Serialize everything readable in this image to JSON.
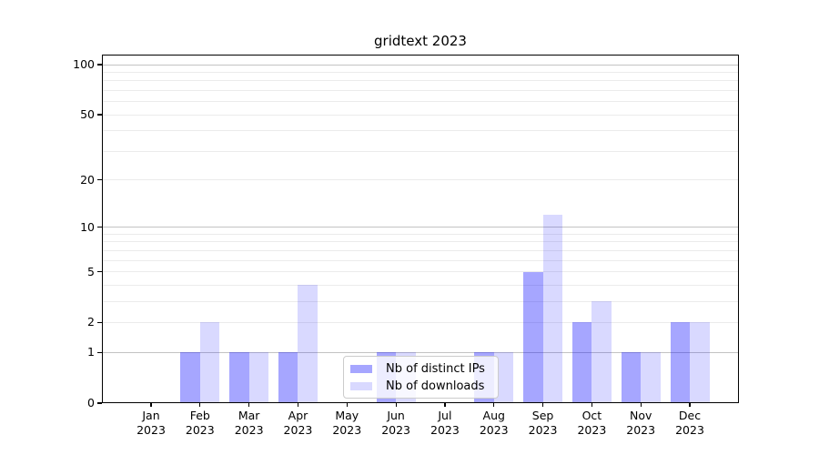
{
  "title": "gridtext 2023",
  "legend": {
    "items": [
      {
        "label": "Nb of distinct IPs",
        "color": "rgba(0,0,255,0.35)"
      },
      {
        "label": "Nb of downloads",
        "color": "rgba(0,0,255,0.15)"
      }
    ]
  },
  "chart_data": {
    "type": "bar",
    "title": "gridtext 2023",
    "categories": [
      "Jan",
      "Feb",
      "Mar",
      "Apr",
      "May",
      "Jun",
      "Jul",
      "Aug",
      "Sep",
      "Oct",
      "Nov",
      "Dec"
    ],
    "category_year": "2023",
    "series": [
      {
        "name": "Nb of distinct IPs",
        "color": "rgba(0,0,255,0.35)",
        "values": [
          0,
          1,
          1,
          1,
          0,
          1,
          0,
          1,
          5,
          2,
          1,
          2
        ]
      },
      {
        "name": "Nb of downloads",
        "color": "rgba(0,0,255,0.15)",
        "values": [
          0,
          2,
          1,
          4,
          0,
          1,
          0,
          1,
          12,
          3,
          1,
          2
        ]
      }
    ],
    "xlabel": "",
    "ylabel": "",
    "y_scale": "log10(1+x)",
    "ylim": [
      0,
      115
    ],
    "y_ticks": [
      0,
      1,
      2,
      5,
      10,
      20,
      50,
      100
    ],
    "y_major_gridlines": [
      1,
      10,
      100
    ],
    "y_minor_gridlines": [
      2,
      3,
      4,
      5,
      6,
      7,
      8,
      9,
      20,
      30,
      40,
      50,
      60,
      70,
      80,
      90
    ],
    "grid": "on",
    "legend_position": "lower center",
    "colors": {
      "major_grid": "#c3c3c3",
      "minor_grid": "#ebebeb",
      "spine": "#000000"
    }
  }
}
